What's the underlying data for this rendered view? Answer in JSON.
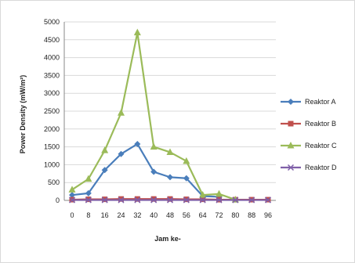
{
  "chart_data": {
    "type": "line",
    "title": "",
    "xlabel": "Jam ke-",
    "ylabel": "Power Density (mW/m²)",
    "x": [
      0,
      8,
      16,
      24,
      32,
      40,
      48,
      56,
      64,
      72,
      80,
      88,
      96
    ],
    "ylim": [
      0,
      5000
    ],
    "yticks": [
      0,
      500,
      1000,
      1500,
      2000,
      2500,
      3000,
      3500,
      4000,
      4500,
      5000
    ],
    "grid": "horizontal",
    "legend_position": "right",
    "series": [
      {
        "name": "Reaktor A",
        "color": "#4a7ebb",
        "marker": "diamond",
        "x": [
          0,
          8,
          16,
          24,
          32,
          40,
          48,
          56,
          64,
          72
        ],
        "values": [
          150,
          200,
          850,
          1300,
          1580,
          800,
          650,
          620,
          120,
          100
        ]
      },
      {
        "name": "Reaktor B",
        "color": "#c0504d",
        "marker": "square",
        "x": [
          0,
          8,
          16,
          24,
          32,
          40,
          48,
          56,
          64,
          72,
          80,
          88,
          96
        ],
        "values": [
          20,
          30,
          30,
          40,
          40,
          40,
          40,
          30,
          30,
          20,
          20,
          20,
          20
        ]
      },
      {
        "name": "Reaktor C",
        "color": "#9bbb59",
        "marker": "triangle",
        "x": [
          0,
          8,
          16,
          24,
          32,
          40,
          48,
          56,
          64,
          72,
          80
        ],
        "values": [
          300,
          600,
          1400,
          2450,
          4700,
          1500,
          1350,
          1100,
          150,
          180,
          20
        ]
      },
      {
        "name": "Reaktor D",
        "color": "#7f5fa8",
        "marker": "x",
        "x": [
          0,
          8,
          16,
          24,
          32,
          40,
          48,
          56,
          64,
          72,
          80,
          88,
          96
        ],
        "values": [
          10,
          10,
          10,
          10,
          10,
          10,
          10,
          10,
          10,
          10,
          10,
          10,
          10
        ]
      }
    ]
  }
}
